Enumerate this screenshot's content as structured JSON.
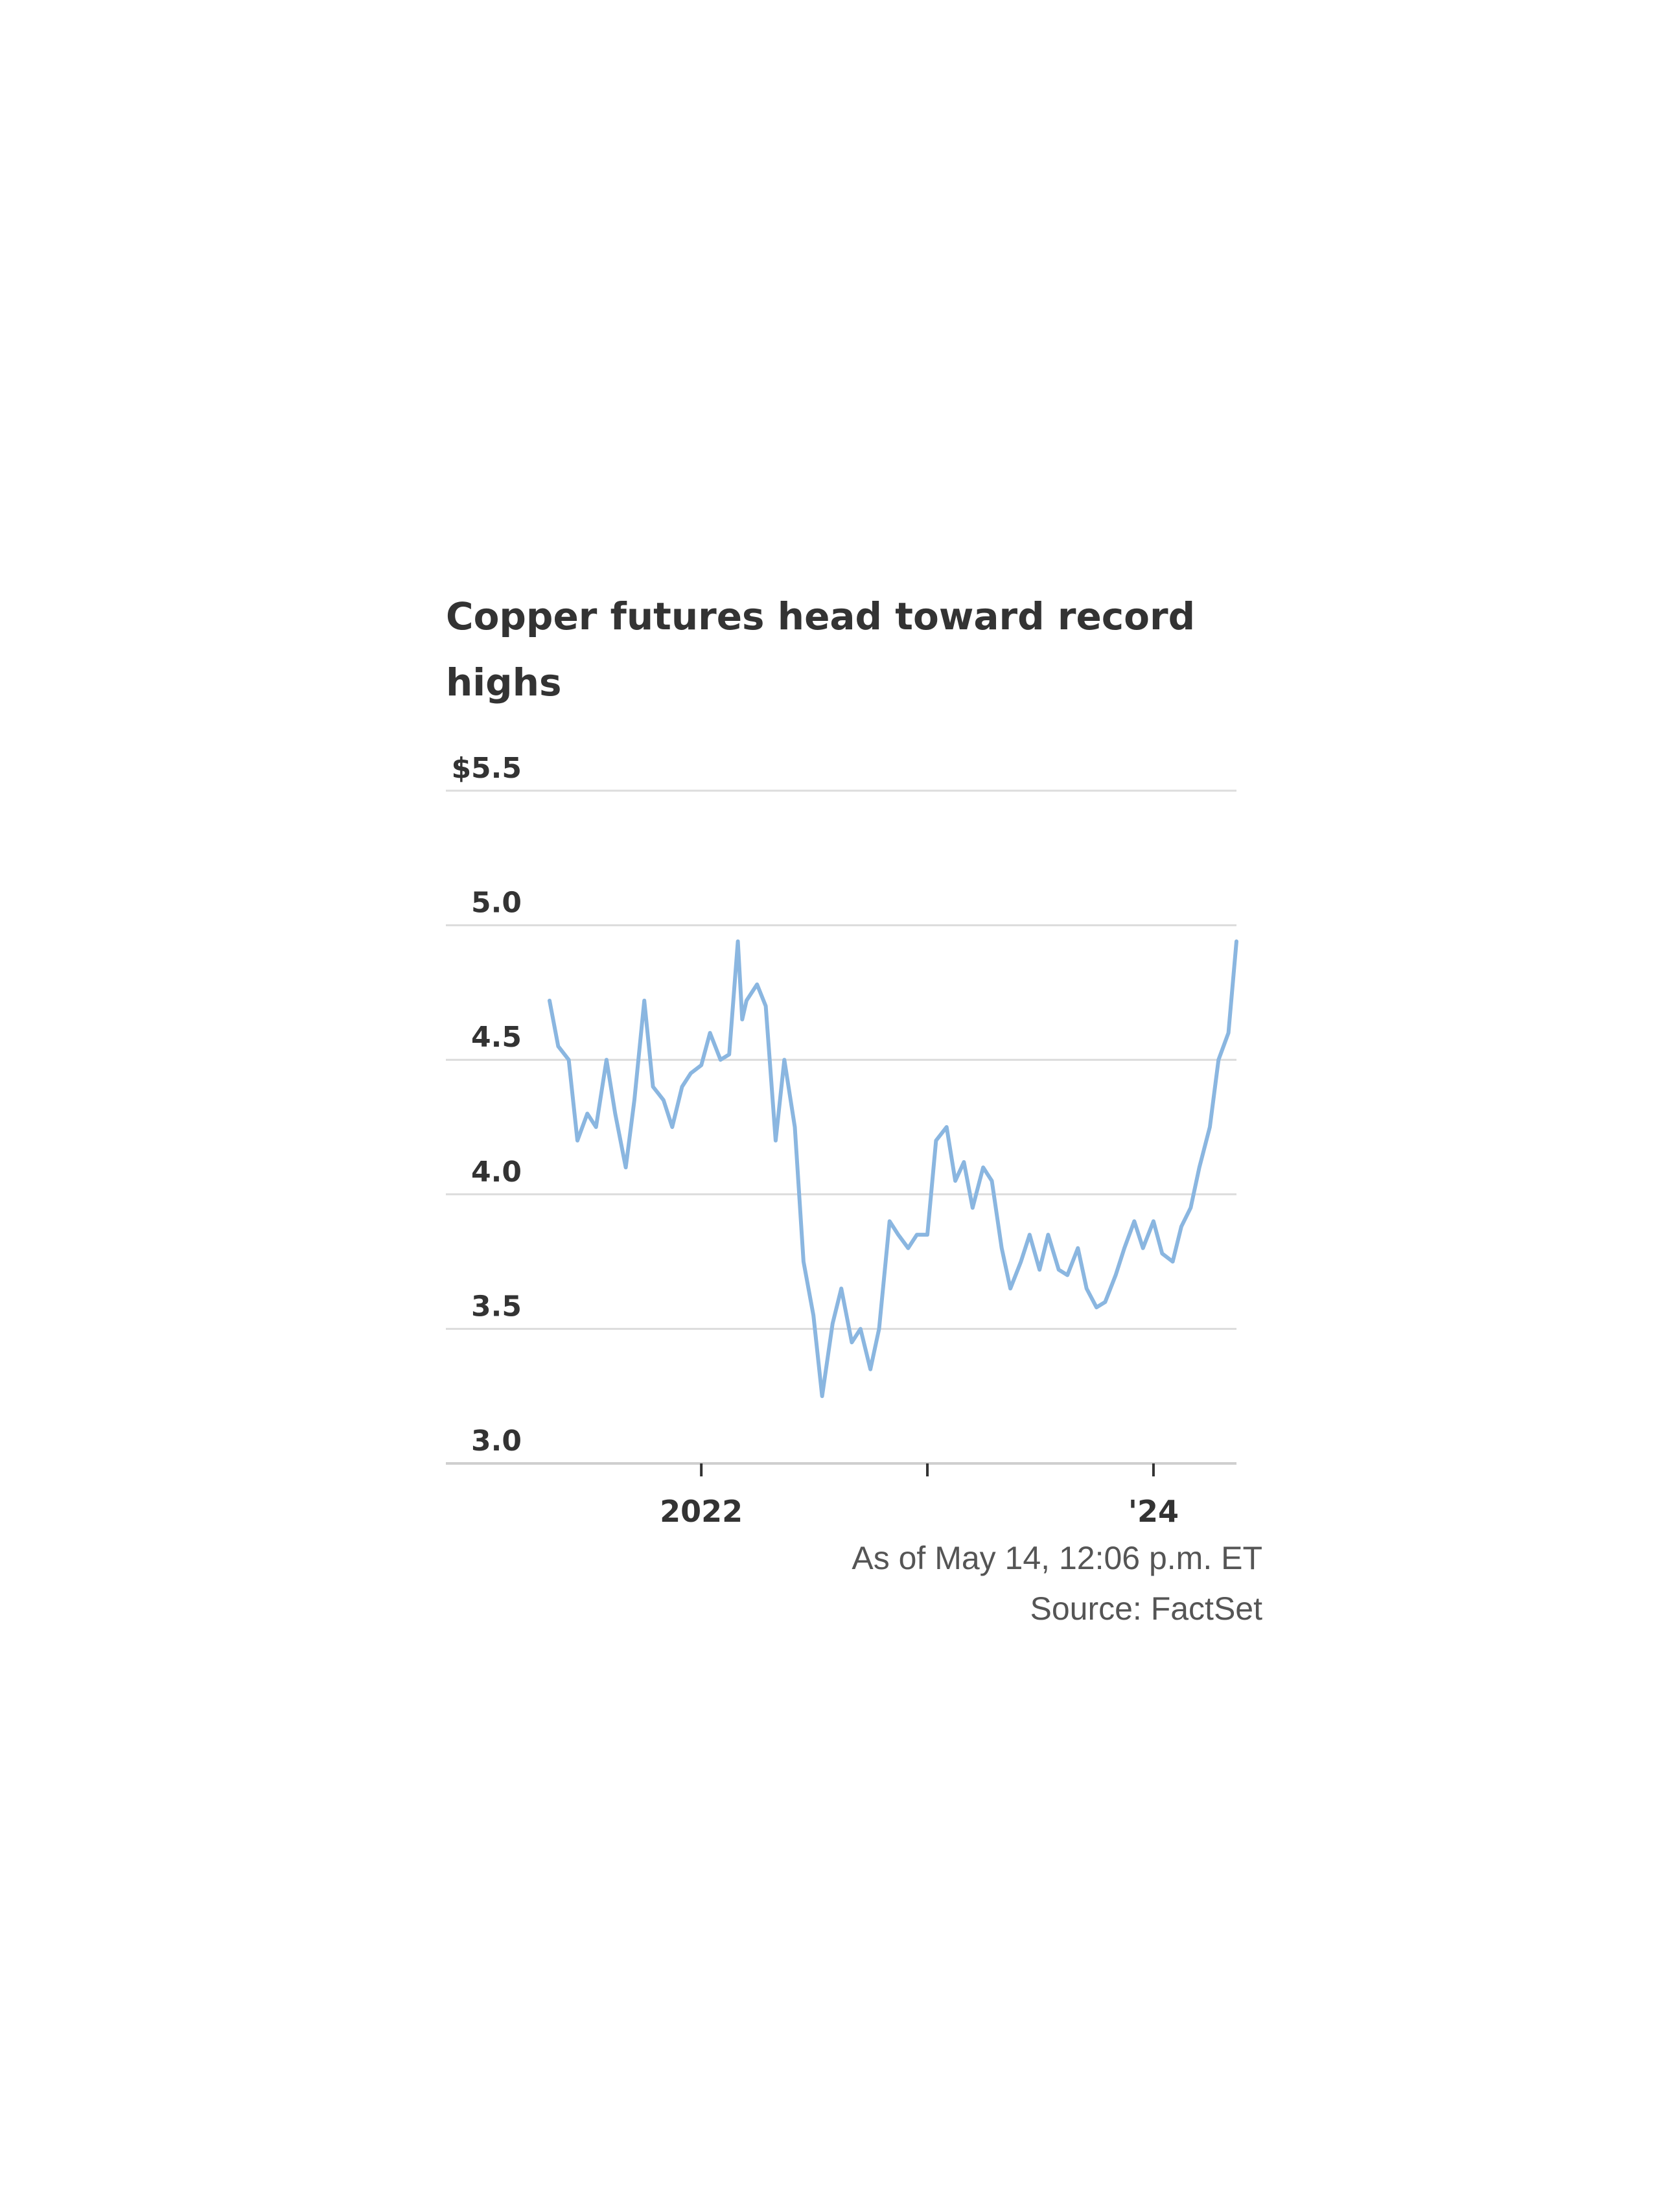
{
  "chart_data": {
    "type": "line",
    "title": "Copper futures head toward record highs",
    "xlabel": "",
    "ylabel": "",
    "ylim": [
      3.0,
      5.5
    ],
    "yticks": [
      {
        "value": 5.5,
        "label": "$5.5"
      },
      {
        "value": 5.0,
        "label": "5.0"
      },
      {
        "value": 4.5,
        "label": "4.5"
      },
      {
        "value": 4.0,
        "label": "4.0"
      },
      {
        "value": 3.5,
        "label": "3.5"
      },
      {
        "value": 3.0,
        "label": "3.0"
      }
    ],
    "xlim": [
      "2021-05-01",
      "2024-05-14"
    ],
    "xticks": [
      {
        "date": "2022-01-01",
        "label": "2022"
      },
      {
        "date": "2023-01-01",
        "label": ""
      },
      {
        "date": "2024-01-01",
        "label": "'24"
      }
    ],
    "grid": true,
    "line_color": "#8ab6e0",
    "series": [
      {
        "x": [
          "2021-05-01",
          "2021-05-15",
          "2021-06-01",
          "2021-06-15",
          "2021-07-01",
          "2021-07-15",
          "2021-08-01",
          "2021-08-15",
          "2021-09-01",
          "2021-09-15",
          "2021-10-01",
          "2021-10-15",
          "2021-11-01",
          "2021-11-15",
          "2021-12-01",
          "2021-12-15",
          "2022-01-01",
          "2022-01-15",
          "2022-02-01",
          "2022-02-15",
          "2022-03-01",
          "2022-03-08",
          "2022-03-15",
          "2022-04-01",
          "2022-04-15",
          "2022-05-01",
          "2022-05-15",
          "2022-06-01",
          "2022-06-15",
          "2022-07-01",
          "2022-07-15",
          "2022-08-01",
          "2022-08-15",
          "2022-09-01",
          "2022-09-15",
          "2022-10-01",
          "2022-10-15",
          "2022-11-01",
          "2022-11-15",
          "2022-12-01",
          "2022-12-15",
          "2023-01-01",
          "2023-01-15",
          "2023-02-01",
          "2023-02-15",
          "2023-03-01",
          "2023-03-15",
          "2023-04-01",
          "2023-04-15",
          "2023-05-01",
          "2023-05-15",
          "2023-06-01",
          "2023-06-15",
          "2023-07-01",
          "2023-07-15",
          "2023-08-01",
          "2023-08-15",
          "2023-09-01",
          "2023-09-15",
          "2023-10-01",
          "2023-10-15",
          "2023-11-01",
          "2023-11-15",
          "2023-12-01",
          "2023-12-15",
          "2024-01-01",
          "2024-01-15",
          "2024-02-01",
          "2024-02-15",
          "2024-03-01",
          "2024-03-15",
          "2024-04-01",
          "2024-04-15",
          "2024-05-01",
          "2024-05-14"
        ],
        "values": [
          4.72,
          4.55,
          4.5,
          4.2,
          4.3,
          4.25,
          4.5,
          4.3,
          4.1,
          4.35,
          4.72,
          4.4,
          4.35,
          4.25,
          4.4,
          4.45,
          4.48,
          4.6,
          4.5,
          4.52,
          4.94,
          4.65,
          4.72,
          4.78,
          4.7,
          4.2,
          4.5,
          4.25,
          3.75,
          3.55,
          3.25,
          3.52,
          3.65,
          3.45,
          3.5,
          3.35,
          3.5,
          3.9,
          3.85,
          3.8,
          3.85,
          3.85,
          4.2,
          4.25,
          4.05,
          4.12,
          3.95,
          4.1,
          4.05,
          3.8,
          3.65,
          3.75,
          3.85,
          3.72,
          3.85,
          3.72,
          3.7,
          3.8,
          3.65,
          3.58,
          3.6,
          3.7,
          3.8,
          3.9,
          3.8,
          3.9,
          3.78,
          3.75,
          3.88,
          3.95,
          4.1,
          4.25,
          4.5,
          4.6,
          4.94
        ]
      }
    ]
  },
  "footer": {
    "as_of": "As of May 14, 12:06 p.m. ET",
    "source": "Source: FactSet"
  }
}
